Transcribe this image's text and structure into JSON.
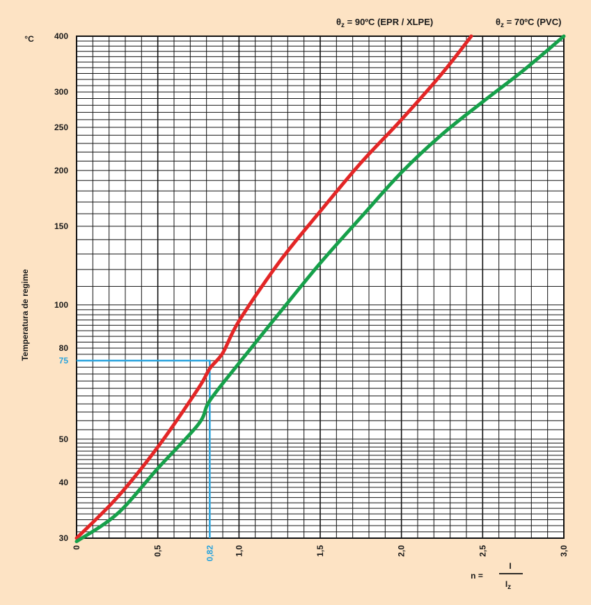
{
  "chart_data": {
    "type": "line",
    "y_scale": "log",
    "ylim": [
      30,
      400
    ],
    "xlim": [
      0,
      3.0
    ],
    "y_unit": "°C",
    "ylabel": "Temperatura de regime",
    "x_ticks": [
      "0",
      "0,5",
      "1,0",
      "1,5",
      "2,0",
      "2,5",
      "3,0"
    ],
    "y_ticks": [
      "30",
      "40",
      "50",
      "80",
      "100",
      "150",
      "200",
      "250",
      "300",
      "400"
    ],
    "xlabel": {
      "prefix": "n =",
      "numerator": "I",
      "denominator": "I",
      "denominator_sub": "z"
    },
    "legend": [
      {
        "theta": "θ",
        "sub": "z",
        "text": " = 90ºC (EPR / XLPE)",
        "color": "#e32626"
      },
      {
        "theta": "θ",
        "sub": "z",
        "text": " = 70ºC (PVC)",
        "color": "#16a04a"
      }
    ],
    "series": [
      {
        "color": "#e32626",
        "points": [
          [
            0,
            30
          ],
          [
            0.25,
            37
          ],
          [
            0.5,
            48
          ],
          [
            0.75,
            65
          ],
          [
            0.82,
            72
          ],
          [
            0.9,
            78
          ],
          [
            1.0,
            92
          ],
          [
            1.25,
            125
          ],
          [
            1.5,
            162
          ],
          [
            1.75,
            208
          ],
          [
            2.0,
            260
          ],
          [
            2.25,
            330
          ],
          [
            2.43,
            400
          ]
        ]
      },
      {
        "color": "#16a04a",
        "points": [
          [
            0,
            29.5
          ],
          [
            0.25,
            34
          ],
          [
            0.5,
            43
          ],
          [
            0.75,
            54
          ],
          [
            0.82,
            61
          ],
          [
            1.0,
            74
          ],
          [
            1.25,
            96
          ],
          [
            1.5,
            124
          ],
          [
            1.75,
            157
          ],
          [
            2.0,
            198
          ],
          [
            2.25,
            241
          ],
          [
            2.5,
            285
          ],
          [
            2.75,
            335
          ],
          [
            3.0,
            400
          ]
        ]
      }
    ],
    "annotation": {
      "x": 0.82,
      "y": 75,
      "x_label": "0,82",
      "y_label": "75",
      "color": "#29a3dd"
    },
    "grid": true
  }
}
